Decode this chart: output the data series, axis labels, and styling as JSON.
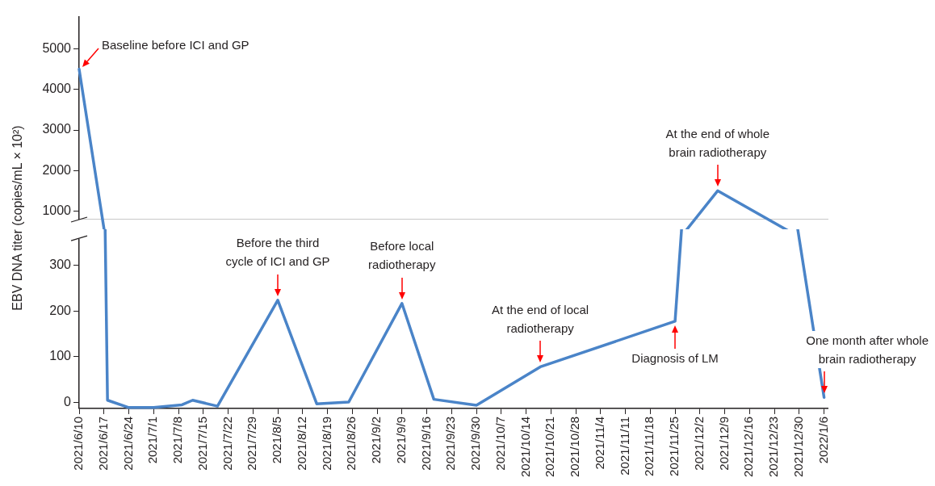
{
  "chart_data": [
    {
      "type": "line",
      "x": [
        "2021-06-10",
        "2021-12-07"
      ],
      "series": [
        {
          "color": "#4a84c8",
          "values": [
            4500,
            1500
          ]
        }
      ],
      "xlim": [
        "2021-06-10",
        "2022-01-07"
      ],
      "ylim": [
        800,
        5800
      ],
      "yticks": [
        1000,
        2000,
        3000,
        4000,
        5000
      ],
      "tick_labels": "y",
      "marker": "none",
      "line_style": "solid",
      "annotations": [
        {
          "text": "Baseline before ICI and GP",
          "x": "2021-06-10",
          "y": 4500
        },
        {
          "text": "At the end of whole\nbrain radiotherapy",
          "x": "2021-12-07",
          "y": 1500
        }
      ]
    },
    {
      "type": "line",
      "ylabel": "EBV DNA titer (copies/mL × 10²)",
      "x": [
        "2021-06-18",
        "2021-06-24",
        "2021-07-01",
        "2021-07-09",
        "2021-07-12",
        "2021-07-19",
        "2021-08-05",
        "2021-08-16",
        "2021-08-25",
        "2021-09-09",
        "2021-09-18",
        "2021-09-30",
        "2021-10-18",
        "2021-11-25",
        "2022-01-06"
      ],
      "series": [
        {
          "color": "#4a84c8",
          "values": [
            5,
            -11,
            -11,
            -5,
            5,
            -8,
            224,
            -3,
            1,
            217,
            7,
            -6,
            78,
            178,
            11
          ]
        }
      ],
      "xlim": [
        "2021-06-10",
        "2022-01-07"
      ],
      "xticks": [
        {
          "value": "2021-06-10",
          "label": "2021/6/10"
        },
        {
          "value": "2021-06-17",
          "label": "2021/6/17"
        },
        {
          "value": "2021-06-24",
          "label": "2021/6/24"
        },
        {
          "value": "2021-07-01",
          "label": "2021/7/1"
        },
        {
          "value": "2021-07-08",
          "label": "2021/7/8"
        },
        {
          "value": "2021-07-15",
          "label": "2021/7/15"
        },
        {
          "value": "2021-07-22",
          "label": "2021/7/22"
        },
        {
          "value": "2021-07-29",
          "label": "2021/7/29"
        },
        {
          "value": "2021-08-05",
          "label": "2021/8/5"
        },
        {
          "value": "2021-08-12",
          "label": "2021/8/12"
        },
        {
          "value": "2021-08-19",
          "label": "2021/8/19"
        },
        {
          "value": "2021-08-26",
          "label": "2021/8/26"
        },
        {
          "value": "2021-09-02",
          "label": "2021/9/2"
        },
        {
          "value": "2021-09-09",
          "label": "2021/9/9"
        },
        {
          "value": "2021-09-16",
          "label": "2021/9/16"
        },
        {
          "value": "2021-09-23",
          "label": "2021/9/23"
        },
        {
          "value": "2021-09-30",
          "label": "2021/9/30"
        },
        {
          "value": "2021-10-07",
          "label": "2021/10/7"
        },
        {
          "value": "2021-10-14",
          "label": "2021/10/14"
        },
        {
          "value": "2021-10-21",
          "label": "2021/10/21"
        },
        {
          "value": "2021-10-28",
          "label": "2021/10/28"
        },
        {
          "value": "2021-11-04",
          "label": "2021/11/4"
        },
        {
          "value": "2021-11-11",
          "label": "2021/11/11"
        },
        {
          "value": "2021-11-18",
          "label": "2021/11/18"
        },
        {
          "value": "2021-11-25",
          "label": "2021/11/25"
        },
        {
          "value": "2021-12-02",
          "label": "2021/12/2"
        },
        {
          "value": "2021-12-09",
          "label": "2021/12/9"
        },
        {
          "value": "2021-12-16",
          "label": "2021/12/16"
        },
        {
          "value": "2021-12-23",
          "label": "2021/12/23"
        },
        {
          "value": "2021-12-30",
          "label": "2021/12/30"
        },
        {
          "value": "2022-01-06",
          "label": "2022/1/6"
        }
      ],
      "ylim": [
        -13,
        357
      ],
      "yticks": [
        0,
        100,
        200,
        300
      ],
      "marker": "none",
      "line_style": "solid",
      "annotations": [
        {
          "text": "Before the third\ncycle of ICI and GP",
          "x": "2021-08-05",
          "y": 224
        },
        {
          "text": "Before local\nradiotherapy",
          "x": "2021-09-09",
          "y": 217
        },
        {
          "text": "At the end of local\nradiotherapy",
          "x": "2021-10-18",
          "y": 78
        },
        {
          "text": "Diagnosis of LM",
          "x": "2021-11-25",
          "y": 178
        },
        {
          "text": "One month after whole\nbrain radiotherapy",
          "x": "2022-01-06",
          "y": 11
        }
      ]
    }
  ]
}
